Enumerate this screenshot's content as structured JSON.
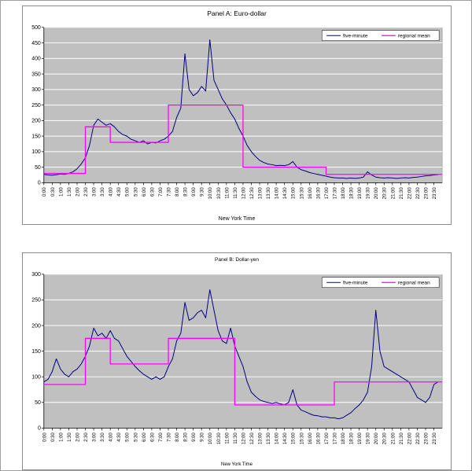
{
  "figure": {
    "background": "#ffffff",
    "border_color": "#9e9e9e"
  },
  "chart_data": [
    {
      "type": "line",
      "title": "Panel A: Euro-dollar",
      "xlabel": "New York Time",
      "ylim": [
        0,
        500
      ],
      "y_ticks": [
        0,
        50,
        100,
        150,
        200,
        250,
        300,
        350,
        400,
        450,
        500
      ],
      "x_range_hours": [
        0,
        24
      ],
      "grid": true,
      "plot_bg": "#c0c0c0",
      "grid_color": "#ffffff",
      "legend_position": "top-right",
      "x_ticks": [
        "0:00",
        "0:30",
        "1:00",
        "1:30",
        "2:00",
        "2:30",
        "3:00",
        "3:30",
        "4:00",
        "4:30",
        "5:00",
        "5:30",
        "6:00",
        "6:30",
        "7:00",
        "7:30",
        "8:00",
        "8:30",
        "9:00",
        "9:30",
        "10:00",
        "10:30",
        "11:00",
        "11:30",
        "12:00",
        "12:30",
        "13:00",
        "13:30",
        "14:00",
        "14:30",
        "15:00",
        "15:30",
        "16:00",
        "16:30",
        "17:00",
        "17:30",
        "18:00",
        "18:30",
        "19:00",
        "19:30",
        "20:00",
        "20:30",
        "21:00",
        "21:30",
        "22:00",
        "22:30",
        "23:00",
        "23:30"
      ],
      "series": [
        {
          "name": "five-minute",
          "color": "#000080",
          "width": 1,
          "x_step_hours": 0.25,
          "values": [
            27,
            25,
            24,
            26,
            28,
            27,
            30,
            35,
            45,
            60,
            80,
            120,
            185,
            205,
            195,
            185,
            190,
            180,
            165,
            155,
            150,
            140,
            135,
            130,
            135,
            125,
            130,
            128,
            135,
            140,
            150,
            165,
            210,
            240,
            415,
            300,
            280,
            290,
            310,
            295,
            460,
            330,
            300,
            270,
            250,
            225,
            205,
            175,
            150,
            120,
            100,
            85,
            72,
            65,
            60,
            58,
            55,
            56,
            55,
            58,
            68,
            50,
            42,
            38,
            33,
            30,
            27,
            24,
            21,
            18,
            16,
            15,
            15,
            14,
            15,
            14,
            15,
            18,
            35,
            25,
            18,
            16,
            15,
            16,
            15,
            14,
            15,
            16,
            15,
            17,
            18,
            20,
            22,
            23,
            25,
            26
          ]
        },
        {
          "name": "regional mean",
          "color": "#ff00ff",
          "width": 1.3,
          "segments": [
            [
              0,
              2.5,
              30
            ],
            [
              2.5,
              4,
              180
            ],
            [
              4,
              7.5,
              130
            ],
            [
              7.5,
              12,
              250
            ],
            [
              12,
              17,
              50
            ],
            [
              17,
              24,
              27
            ]
          ]
        }
      ]
    },
    {
      "type": "line",
      "title": "Panel B: Dollar-yen",
      "xlabel": "New York Time",
      "ylim": [
        0,
        300
      ],
      "y_ticks": [
        0,
        50,
        100,
        150,
        200,
        250,
        300
      ],
      "x_range_hours": [
        0,
        24
      ],
      "grid": true,
      "plot_bg": "#c0c0c0",
      "grid_color": "#ffffff",
      "legend_position": "top-right",
      "x_ticks": [
        "0:00",
        "0:30",
        "1:00",
        "1:30",
        "2:00",
        "2:30",
        "3:00",
        "3:30",
        "4:00",
        "4:30",
        "5:00",
        "5:30",
        "6:00",
        "6:30",
        "7:00",
        "7:30",
        "8:00",
        "8:30",
        "9:00",
        "9:30",
        "10:00",
        "10:30",
        "11:00",
        "11:30",
        "12:00",
        "12:30",
        "13:00",
        "13:30",
        "14:00",
        "14:30",
        "15:00",
        "15:30",
        "16:00",
        "16:30",
        "17:00",
        "17:30",
        "18:00",
        "18:30",
        "19:00",
        "19:30",
        "20:00",
        "20:30",
        "21:00",
        "21:30",
        "22:00",
        "22:30",
        "23:00",
        "23:30"
      ],
      "series": [
        {
          "name": "five-minute",
          "color": "#000080",
          "width": 1,
          "x_step_hours": 0.25,
          "values": [
            90,
            95,
            110,
            135,
            115,
            105,
            100,
            110,
            115,
            125,
            140,
            160,
            195,
            180,
            185,
            175,
            190,
            175,
            170,
            155,
            140,
            130,
            120,
            112,
            105,
            100,
            95,
            100,
            95,
            100,
            120,
            135,
            170,
            185,
            245,
            210,
            215,
            225,
            230,
            215,
            270,
            230,
            190,
            170,
            165,
            195,
            160,
            140,
            120,
            90,
            70,
            62,
            55,
            52,
            50,
            48,
            50,
            47,
            45,
            50,
            75,
            45,
            35,
            32,
            28,
            25,
            24,
            22,
            22,
            20,
            20,
            18,
            20,
            25,
            30,
            38,
            45,
            55,
            70,
            120,
            230,
            150,
            120,
            115,
            110,
            105,
            100,
            95,
            90,
            75,
            60,
            55,
            50,
            60,
            85,
            90
          ]
        },
        {
          "name": "regional mean",
          "color": "#ff00ff",
          "width": 1.3,
          "segments": [
            [
              0,
              2.5,
              85
            ],
            [
              2.5,
              4,
              175
            ],
            [
              4,
              7.5,
              125
            ],
            [
              7.5,
              11.5,
              175
            ],
            [
              11.5,
              17.5,
              45
            ],
            [
              17.5,
              24,
              90
            ]
          ]
        }
      ]
    }
  ]
}
